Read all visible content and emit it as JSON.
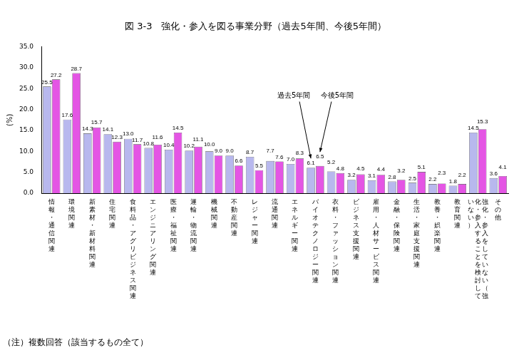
{
  "chart_data": {
    "type": "bar",
    "title": "図 3-3　強化・参入を図る事業分野（過去5年間、今後5年間）",
    "ylabel": "(%)",
    "categories": [
      "情報・通信関連",
      "環境関連",
      "新素材・新材料関連",
      "住宅関連",
      "食料品・アグリビジネス関連",
      "エンジニアリング関連",
      "医療・福祉関連",
      "運輸・物流関連",
      "機械関連",
      "不動産関連",
      "レジャー関連",
      "流通関連",
      "エネルギー関連",
      "バイオテクノロジー関連",
      "衣料・ファッション関連",
      "ビジネス支援関連",
      "雇用・人材サービス関連",
      "金融・保険関連",
      "生活・家庭支援関連",
      "教養・娯楽関連",
      "教育関連",
      "強化・参入をしていない（強化・参入することを検討していない）",
      "その他"
    ],
    "series": [
      {
        "name": "過去5年間",
        "color": "#b8b8ee",
        "values": [
          25.5,
          17.6,
          14.3,
          14.1,
          13.0,
          10.8,
          10.4,
          10.2,
          10.0,
          9.0,
          8.7,
          7.7,
          7.0,
          6.1,
          5.2,
          3.2,
          3.1,
          2.8,
          2.5,
          2.2,
          1.8,
          14.5,
          3.6
        ],
        "value_labels": [
          "25.5",
          "17.6",
          "14.3",
          "14.1",
          "13.0",
          "10.8",
          "10.4",
          "10.2",
          "10.0",
          "9.0",
          "8.7",
          "7.7",
          "7.0",
          "6.1",
          "5.2",
          "3.2",
          "3.1",
          "2.8",
          "2.5",
          "2.2",
          "1.8",
          "14.5",
          "3.6"
        ]
      },
      {
        "name": "今後5年間",
        "color": "#e455e4",
        "values": [
          27.2,
          28.7,
          15.7,
          12.3,
          11.7,
          11.6,
          14.5,
          11.1,
          9.0,
          6.6,
          5.5,
          7.6,
          8.3,
          6.5,
          4.8,
          4.5,
          4.4,
          3.2,
          5.1,
          2.3,
          2.2,
          15.3,
          4.1
        ],
        "value_labels": [
          "27.2",
          "28.7",
          "15.7",
          "12.3",
          "11.7",
          "11.6",
          "14.5",
          "11.1",
          "9.0",
          "6.6",
          "5.5",
          "7.6",
          "8.3",
          "6.5",
          "4.8",
          "4.5",
          "4.4",
          "3.2",
          "5.1",
          "2.3",
          "2.2",
          "15.3",
          "4.1"
        ]
      }
    ],
    "ylim": [
      0,
      35
    ],
    "yticks": [
      {
        "value": 0,
        "label": "0.0"
      },
      {
        "value": 5,
        "label": "5.0"
      },
      {
        "value": 10,
        "label": "10.0"
      },
      {
        "value": 15,
        "label": "15.0"
      },
      {
        "value": 20,
        "label": "20.0"
      },
      {
        "value": 25,
        "label": "25.0"
      },
      {
        "value": 30,
        "label": "30.0"
      },
      {
        "value": 35,
        "label": "35.0"
      }
    ],
    "grid": false,
    "data_labels": true,
    "annotations": [
      "（注）複数回答（該当するもの全て）"
    ]
  }
}
